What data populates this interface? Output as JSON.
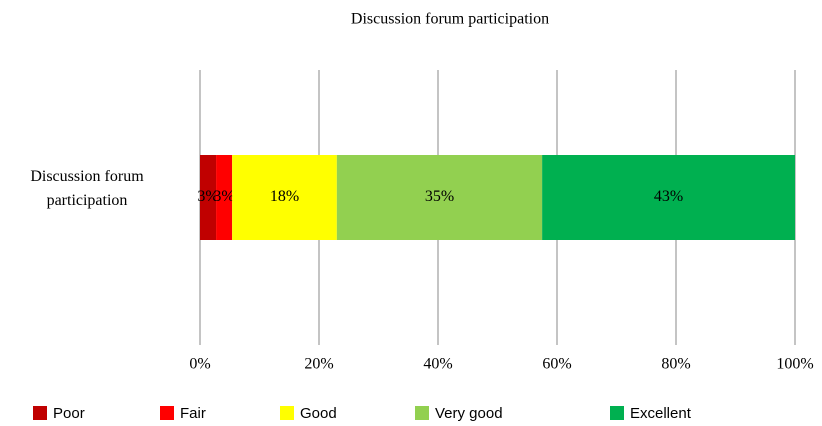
{
  "chart_data": {
    "type": "bar",
    "orientation": "horizontal",
    "stacked": true,
    "title": "Discussion forum participation",
    "categories": [
      "Discussion forum participation"
    ],
    "series": [
      {
        "name": "Poor",
        "color": "#c00000",
        "values": [
          2.7
        ],
        "value_labels": [
          "3%"
        ]
      },
      {
        "name": "Fair",
        "color": "#ff0000",
        "values": [
          2.7
        ],
        "value_labels": [
          "3%"
        ]
      },
      {
        "name": "Good",
        "color": "#ffff00",
        "values": [
          17.6
        ],
        "value_labels": [
          "18%"
        ]
      },
      {
        "name": "Very good",
        "color": "#92d050",
        "values": [
          34.5
        ],
        "value_labels": [
          "35%"
        ]
      },
      {
        "name": "Excellent",
        "color": "#00b050",
        "values": [
          42.5
        ],
        "value_labels": [
          "43%"
        ]
      }
    ],
    "xlim": [
      0,
      100
    ],
    "xticks": [
      {
        "value": 0,
        "label": "0%"
      },
      {
        "value": 20,
        "label": "20%"
      },
      {
        "value": 40,
        "label": "40%"
      },
      {
        "value": 60,
        "label": "60%"
      },
      {
        "value": 80,
        "label": "80%"
      },
      {
        "value": 100,
        "label": "100%"
      }
    ],
    "grid": true,
    "legend": "bottom"
  }
}
